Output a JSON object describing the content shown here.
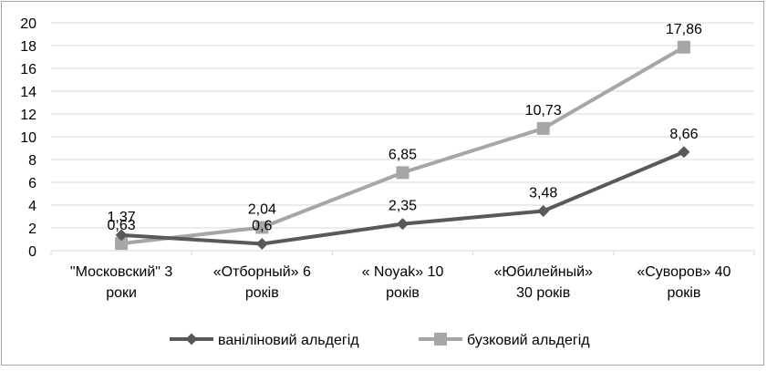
{
  "chart_data": {
    "type": "line",
    "title": "",
    "xlabel": "",
    "ylabel": "",
    "ylim": [
      0,
      20
    ],
    "yticks": [
      "0",
      "2",
      "4",
      "6",
      "8",
      "10",
      "12",
      "14",
      "16",
      "18",
      "20"
    ],
    "categories": [
      [
        "\"Московский\" 3",
        "роки"
      ],
      [
        "«Отборный» 6",
        "років"
      ],
      [
        "« Noyak» 10",
        "років"
      ],
      [
        "«Юбилейный»",
        "30 років"
      ],
      [
        "«Суворов» 40",
        "років"
      ]
    ],
    "grid": "horizontal",
    "legend_position": "bottom",
    "series": [
      {
        "name": "ваніліновий альдегід",
        "values": [
          1.37,
          0.6,
          2.35,
          3.48,
          8.66
        ],
        "labels": [
          "1,37",
          "0,6",
          "2,35",
          "3,48",
          "8,66"
        ],
        "color": "#595959",
        "marker": "diamond"
      },
      {
        "name": "бузковий альдегід",
        "values": [
          0.63,
          2.04,
          6.85,
          10.73,
          17.86
        ],
        "labels": [
          "0,63",
          "2,04",
          "6,85",
          "10,73",
          "17,86"
        ],
        "color": "#a6a6a6",
        "marker": "square"
      }
    ]
  }
}
